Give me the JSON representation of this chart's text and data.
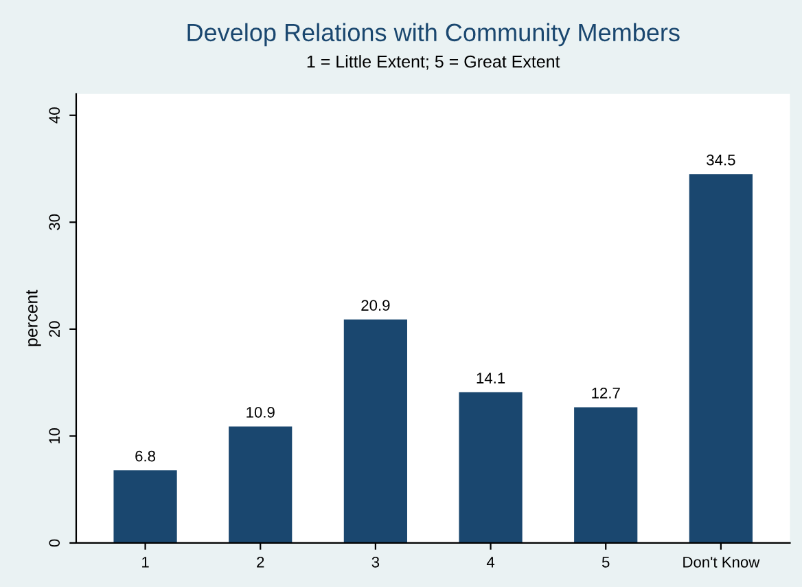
{
  "chart_data": {
    "type": "bar",
    "title": "Develop Relations with Community Members",
    "subtitle": "1 = Little Extent; 5 = Great Extent",
    "ylabel": "percent",
    "categories": [
      "1",
      "2",
      "3",
      "4",
      "5",
      "Don't Know"
    ],
    "values": [
      6.8,
      10.9,
      20.9,
      14.1,
      12.7,
      34.5
    ],
    "color": "#1a476f",
    "ylim": [
      0,
      42
    ],
    "yticks": [
      0,
      10,
      20,
      30,
      40
    ],
    "grid": false,
    "data_labels": true
  }
}
